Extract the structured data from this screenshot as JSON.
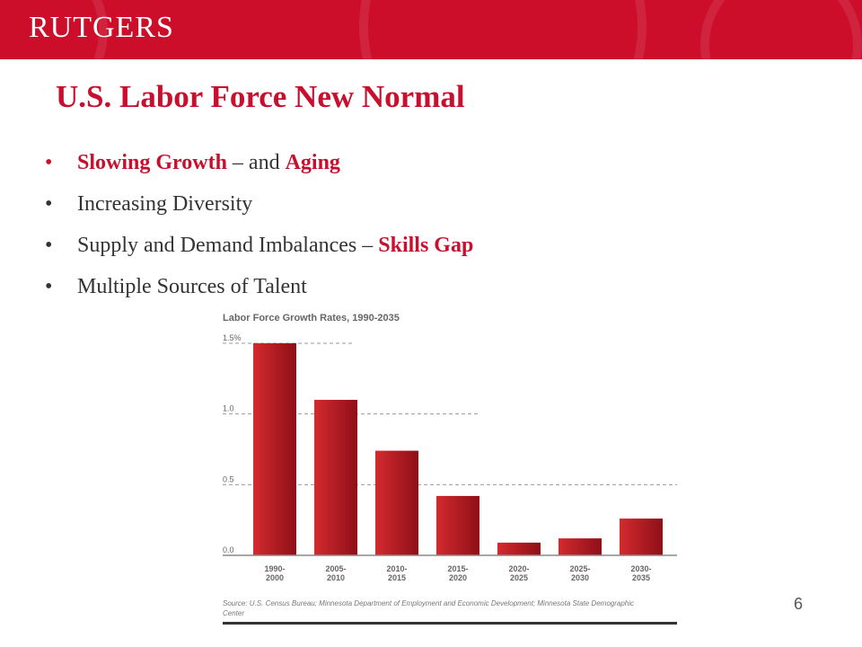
{
  "header": {
    "logo_text": "RUTGERS"
  },
  "slide": {
    "title": "U.S. Labor Force New Normal",
    "bullets": [
      {
        "parts": [
          {
            "text": "Slowing Growth",
            "highlight": true
          },
          {
            "text": " – and ",
            "highlight": false
          },
          {
            "text": "Aging",
            "highlight": true
          }
        ]
      },
      {
        "parts": [
          {
            "text": "Increasing Diversity",
            "highlight": false
          }
        ]
      },
      {
        "parts": [
          {
            "text": "Supply and Demand Imbalances – ",
            "highlight": false
          },
          {
            "text": "Skills Gap",
            "highlight": true
          }
        ]
      },
      {
        "parts": [
          {
            "text": "Multiple Sources of Talent",
            "highlight": false
          }
        ]
      }
    ],
    "bullet_glyph": "•",
    "page_number": "6"
  },
  "colors": {
    "brand_red": "#cc0e2a",
    "highlight_red": "#c8102e",
    "bar_red": "#b3151f"
  },
  "chart_data": {
    "type": "bar",
    "title": "Labor Force Growth Rates, 1990-2035",
    "categories": [
      [
        "1990-",
        "2000"
      ],
      [
        "2005-",
        "2010"
      ],
      [
        "2010-",
        "2015"
      ],
      [
        "2015-",
        "2020"
      ],
      [
        "2020-",
        "2025"
      ],
      [
        "2025-",
        "2030"
      ],
      [
        "2030-",
        "2035"
      ]
    ],
    "values": [
      1.5,
      1.1,
      0.74,
      0.42,
      0.09,
      0.12,
      0.26
    ],
    "yticks": [
      {
        "value": 0.0,
        "label": "0.0"
      },
      {
        "value": 0.5,
        "label": "0.5"
      },
      {
        "value": 1.0,
        "label": "1.0"
      },
      {
        "value": 1.5,
        "label": "1.5%"
      }
    ],
    "ylim": [
      0,
      1.5
    ],
    "xlabel": "",
    "ylabel": "",
    "source": "Source: U.S. Census Bureau; Minnesota Department of Employment and Economic Development; Minnesota State Demographic Center"
  }
}
